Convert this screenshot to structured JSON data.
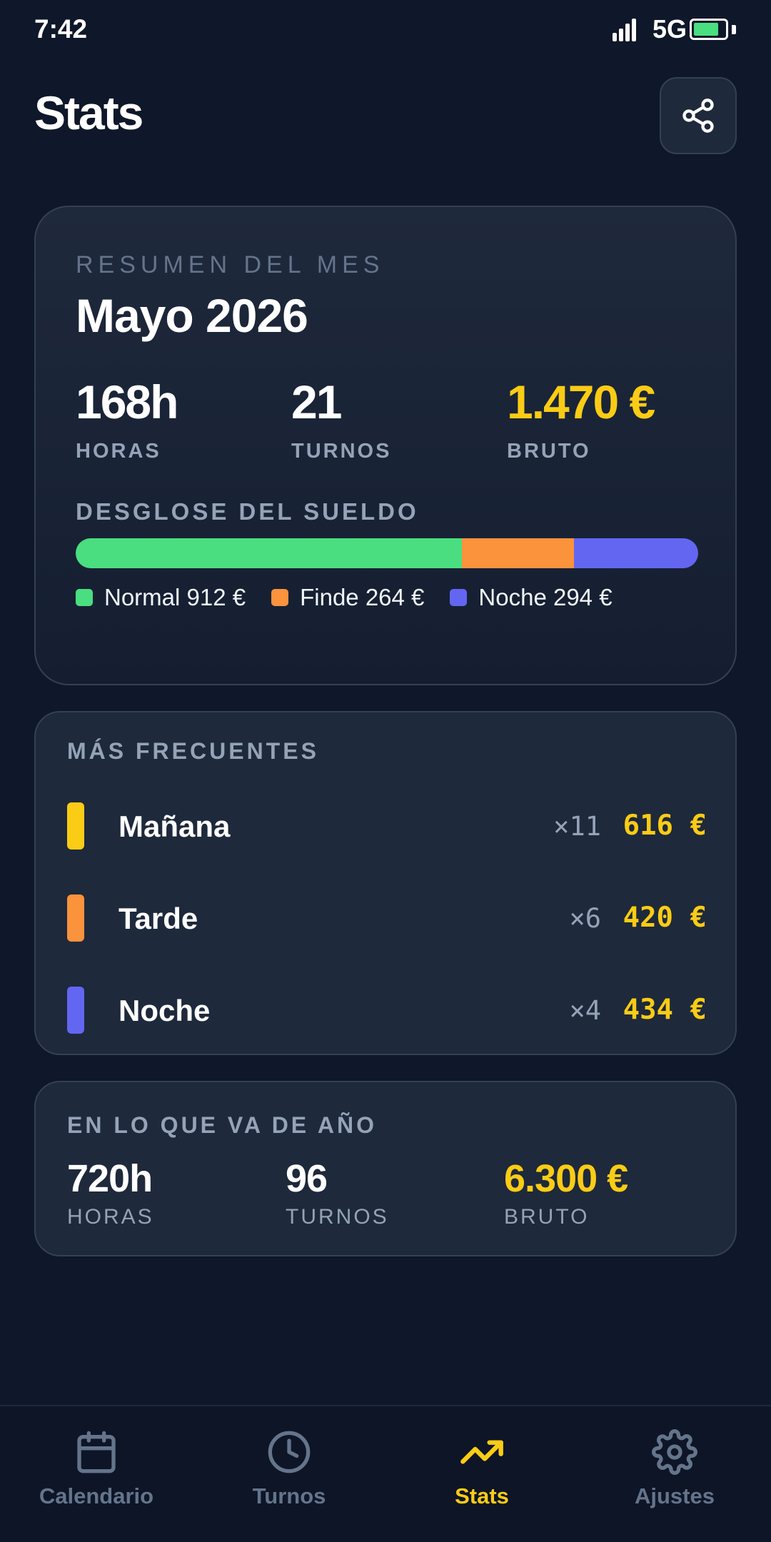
{
  "status_bar": {
    "time": "7:42",
    "network": "5G",
    "battery_level": 0.82,
    "battery_color": "#4ade80"
  },
  "header": {
    "title": "Stats",
    "share_icon": "share-icon"
  },
  "month_summary": {
    "kicker": "RESUMEN DEL MES",
    "title": "Mayo 2026",
    "stats": [
      {
        "value": "168h",
        "label": "HORAS"
      },
      {
        "value": "21",
        "label": "TURNOS"
      },
      {
        "value": "1.470 €",
        "label": "BRUTO"
      }
    ],
    "breakdown_title": "DESGLOSE DEL SUELDO",
    "breakdown": [
      {
        "label": "Normal 912 €",
        "amount": 912,
        "color": "#4ade80"
      },
      {
        "label": "Finde 264 €",
        "amount": 264,
        "color": "#fb923c"
      },
      {
        "label": "Noche 294 €",
        "amount": 294,
        "color": "#6366f1"
      }
    ]
  },
  "frequent": {
    "title": "MÁS FRECUENTES",
    "items": [
      {
        "name": "Mañana",
        "count": "×11",
        "amount": "616 €",
        "color": "#facc15"
      },
      {
        "name": "Tarde",
        "count": "×6",
        "amount": "420 €",
        "color": "#fb923c"
      },
      {
        "name": "Noche",
        "count": "×4",
        "amount": "434 €",
        "color": "#6366f1"
      }
    ]
  },
  "year_summary": {
    "title": "EN LO QUE VA DE AÑO",
    "stats": [
      {
        "value": "720h",
        "label": "HORAS"
      },
      {
        "value": "96",
        "label": "TURNOS"
      },
      {
        "value": "6.300 €",
        "label": "BRUTO"
      }
    ]
  },
  "bottom_nav": {
    "items": [
      {
        "label": "Calendario",
        "icon": "calendar-icon"
      },
      {
        "label": "Turnos",
        "icon": "clock-icon"
      },
      {
        "label": "Stats",
        "icon": "trending-up-icon",
        "active": true
      },
      {
        "label": "Ajustes",
        "icon": "gear-icon"
      }
    ],
    "active_color": "#facc15",
    "inactive_color": "#64748b"
  }
}
